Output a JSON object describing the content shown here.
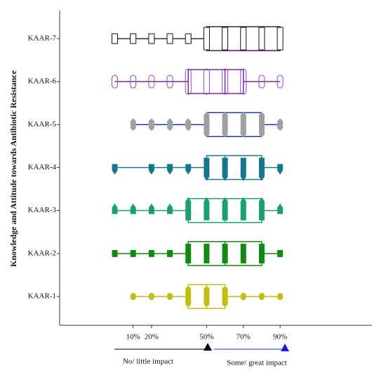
{
  "chart_data": {
    "type": "boxplot",
    "y_label": "Knowledge and Attitude towards Antibiotic Resistance",
    "xlim": [
      -30,
      140
    ],
    "xticks": [
      {
        "value": 10,
        "label": "10%"
      },
      {
        "value": 20,
        "label": "20%"
      },
      {
        "value": 50,
        "label": "50%"
      },
      {
        "value": 70,
        "label": "70%"
      },
      {
        "value": 90,
        "label": "90%"
      }
    ],
    "series": [
      {
        "name": "KAAR-1",
        "color": "#c4bc12",
        "box_color": "#c4bc12",
        "marker": "oval",
        "min": 10,
        "q1": 40,
        "median": 50,
        "q3": 60,
        "max": 90,
        "points": [
          10,
          20,
          30,
          40,
          50,
          60,
          70,
          80,
          90
        ]
      },
      {
        "name": "KAAR-2",
        "color": "#128a12",
        "box_color": "#128a12",
        "marker": "square",
        "min": 0,
        "q1": 40,
        "median": 60,
        "q3": 80,
        "max": 90,
        "points": [
          0,
          10,
          20,
          30,
          40,
          50,
          60,
          70,
          80,
          90
        ]
      },
      {
        "name": "KAAR-3",
        "color": "#1aa070",
        "box_color": "#1aa070",
        "marker": "triangle-up",
        "min": 0,
        "q1": 40,
        "median": 60,
        "q3": 80,
        "max": 90,
        "points": [
          0,
          10,
          20,
          30,
          40,
          50,
          60,
          70,
          80,
          90
        ]
      },
      {
        "name": "KAAR-4",
        "color": "#17778a",
        "box_color": "#17778a",
        "marker": "triangle-down",
        "min": 0,
        "q1": 50,
        "median": 60,
        "q3": 80,
        "max": 90,
        "points": [
          0,
          20,
          30,
          40,
          50,
          60,
          70,
          80,
          90
        ]
      },
      {
        "name": "KAAR-5",
        "color": "#a0a0a0",
        "box_color": "#1f2fc0",
        "marker": "diamond",
        "min": 10,
        "q1": 50,
        "median": 60,
        "q3": 80,
        "max": 90,
        "points": [
          10,
          20,
          30,
          40,
          50,
          60,
          70,
          80,
          90
        ]
      },
      {
        "name": "KAAR-6",
        "color": "#9a3fd0",
        "box_color": "#7a2aa8",
        "marker": "circle",
        "min": 0,
        "q1": 40,
        "median": 60,
        "q3": 70,
        "max": 90,
        "points": [
          0,
          10,
          20,
          30,
          40,
          50,
          60,
          70,
          80,
          90
        ]
      },
      {
        "name": "KAAR-7",
        "color": "#111111",
        "box_color": "#4a1e5e",
        "marker": "square-open",
        "min": 0,
        "q1": 50,
        "median": 60,
        "q3": 90,
        "max": 90,
        "points": [
          0,
          10,
          20,
          30,
          40,
          50,
          60,
          70,
          80,
          90
        ]
      }
    ],
    "annotations": [
      "No/ little impact",
      "Some/ great impact"
    ]
  }
}
